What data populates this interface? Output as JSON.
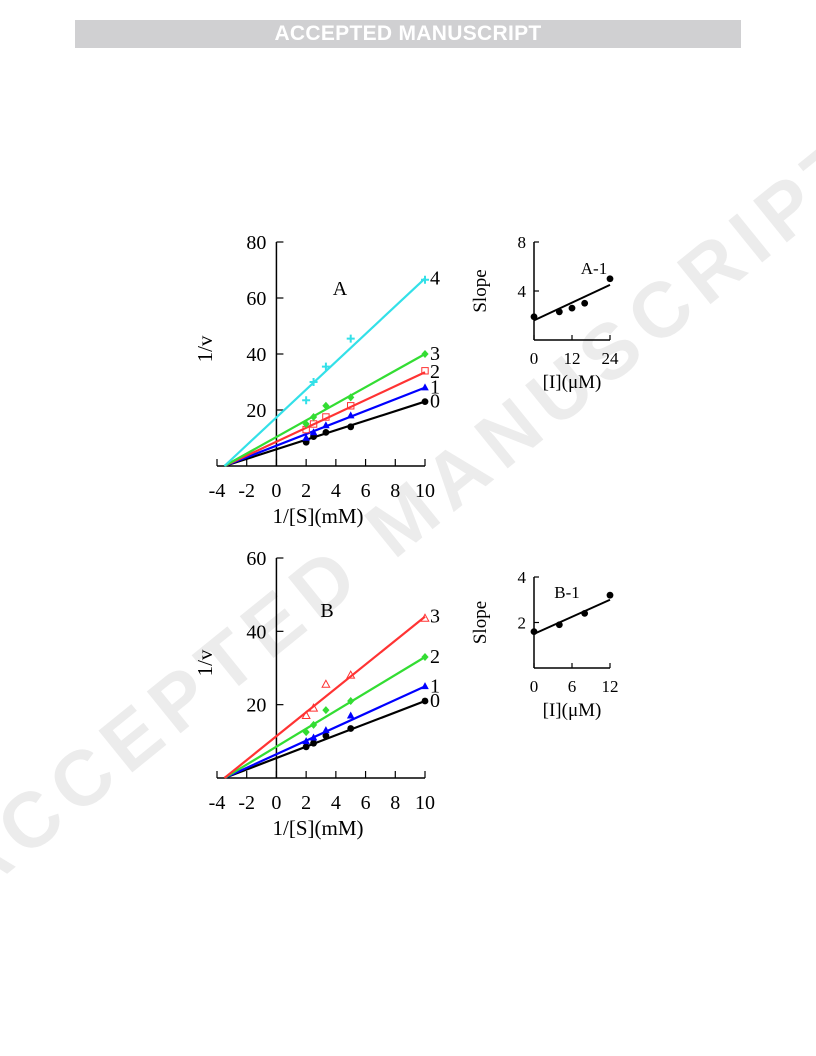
{
  "banner": {
    "text": "ACCEPTED MANUSCRIPT"
  },
  "watermark": {
    "text": "ACCEPTED MANUSCRIPT"
  },
  "chart_data": [
    {
      "id": "A",
      "type": "line",
      "panel_label": "A",
      "xlabel": "1/[S](mM)",
      "ylabel": "1/v",
      "xlim": [
        -4,
        10
      ],
      "ylim": [
        0,
        80
      ],
      "xticks": [
        -4,
        -2,
        0,
        2,
        4,
        6,
        8,
        10
      ],
      "yticks": [
        20,
        40,
        60,
        80
      ],
      "x_intercept": -3.5,
      "series": [
        {
          "name": "0",
          "color": "#000000",
          "marker": "circle",
          "x": [
            2,
            2.5,
            3.33,
            5,
            10
          ],
          "y": [
            8.5,
            10.5,
            12,
            14,
            23
          ],
          "fit_end": 23
        },
        {
          "name": "1",
          "color": "#0000ff",
          "marker": "triangle",
          "x": [
            2,
            2.5,
            3.33,
            5,
            10
          ],
          "y": [
            10,
            12,
            14.5,
            18,
            28
          ],
          "fit_end": 28
        },
        {
          "name": "2",
          "color": "#ff3333",
          "marker": "open-square",
          "x": [
            2,
            2.5,
            3.33,
            5,
            10
          ],
          "y": [
            13,
            15,
            17.5,
            21.5,
            34
          ],
          "fit_end": 33.5
        },
        {
          "name": "3",
          "color": "#33dd33",
          "marker": "diamond",
          "x": [
            2,
            2.5,
            3.33,
            5,
            10
          ],
          "y": [
            15,
            17.5,
            21.5,
            24.5,
            40
          ],
          "fit_end": 40
        },
        {
          "name": "4",
          "color": "#33e0e8",
          "marker": "plus",
          "x": [
            2,
            2.5,
            3.33,
            5,
            10
          ],
          "y": [
            23.5,
            30,
            35.5,
            45.5,
            66.5
          ],
          "fit_end": 67
        }
      ]
    },
    {
      "id": "A-1",
      "type": "scatter",
      "panel_label": "A-1",
      "xlabel": "[I](μM)",
      "ylabel": "Slope",
      "xlim": [
        0,
        24
      ],
      "ylim": [
        0,
        8
      ],
      "xticks": [
        0,
        12,
        24
      ],
      "yticks": [
        4,
        8
      ],
      "x": [
        0,
        8,
        12,
        16,
        24
      ],
      "y": [
        1.9,
        2.3,
        2.6,
        3.0,
        5.0
      ],
      "fit": {
        "x": [
          0,
          24
        ],
        "y": [
          1.6,
          4.5
        ]
      }
    },
    {
      "id": "B",
      "type": "line",
      "panel_label": "B",
      "xlabel": "1/[S](mM)",
      "ylabel": "1/v",
      "xlim": [
        -4,
        10
      ],
      "ylim": [
        0,
        60
      ],
      "xticks": [
        -4,
        -2,
        0,
        2,
        4,
        6,
        8,
        10
      ],
      "yticks": [
        20,
        40,
        60
      ],
      "x_intercept": -3.5,
      "series": [
        {
          "name": "0",
          "color": "#000000",
          "marker": "circle",
          "x": [
            2,
            2.5,
            3.33,
            5,
            10
          ],
          "y": [
            8.5,
            9.5,
            11.5,
            13.5,
            21
          ],
          "fit_end": 21
        },
        {
          "name": "1",
          "color": "#0000ff",
          "marker": "triangle",
          "x": [
            2,
            2.5,
            3.33,
            5,
            10
          ],
          "y": [
            10,
            11,
            13,
            17,
            25
          ],
          "fit_end": 25
        },
        {
          "name": "2",
          "color": "#33dd33",
          "marker": "diamond",
          "x": [
            2,
            2.5,
            3.33,
            5,
            10
          ],
          "y": [
            12.5,
            14.5,
            18.5,
            21,
            33
          ],
          "fit_end": 33
        },
        {
          "name": "3",
          "color": "#ff3333",
          "marker": "open-triangle",
          "x": [
            2,
            2.5,
            3.33,
            5,
            10
          ],
          "y": [
            17,
            19,
            25.5,
            28,
            43.5
          ],
          "fit_end": 44
        }
      ]
    },
    {
      "id": "B-1",
      "type": "scatter",
      "panel_label": "B-1",
      "xlabel": "[I](μM)",
      "ylabel": "Slope",
      "xlim": [
        0,
        12
      ],
      "ylim": [
        0,
        4
      ],
      "xticks": [
        0,
        6,
        12
      ],
      "yticks": [
        2,
        4
      ],
      "x": [
        0,
        4,
        8,
        12
      ],
      "y": [
        1.6,
        1.9,
        2.4,
        3.2
      ],
      "fit": {
        "x": [
          0,
          12
        ],
        "y": [
          1.5,
          3.0
        ]
      }
    }
  ]
}
